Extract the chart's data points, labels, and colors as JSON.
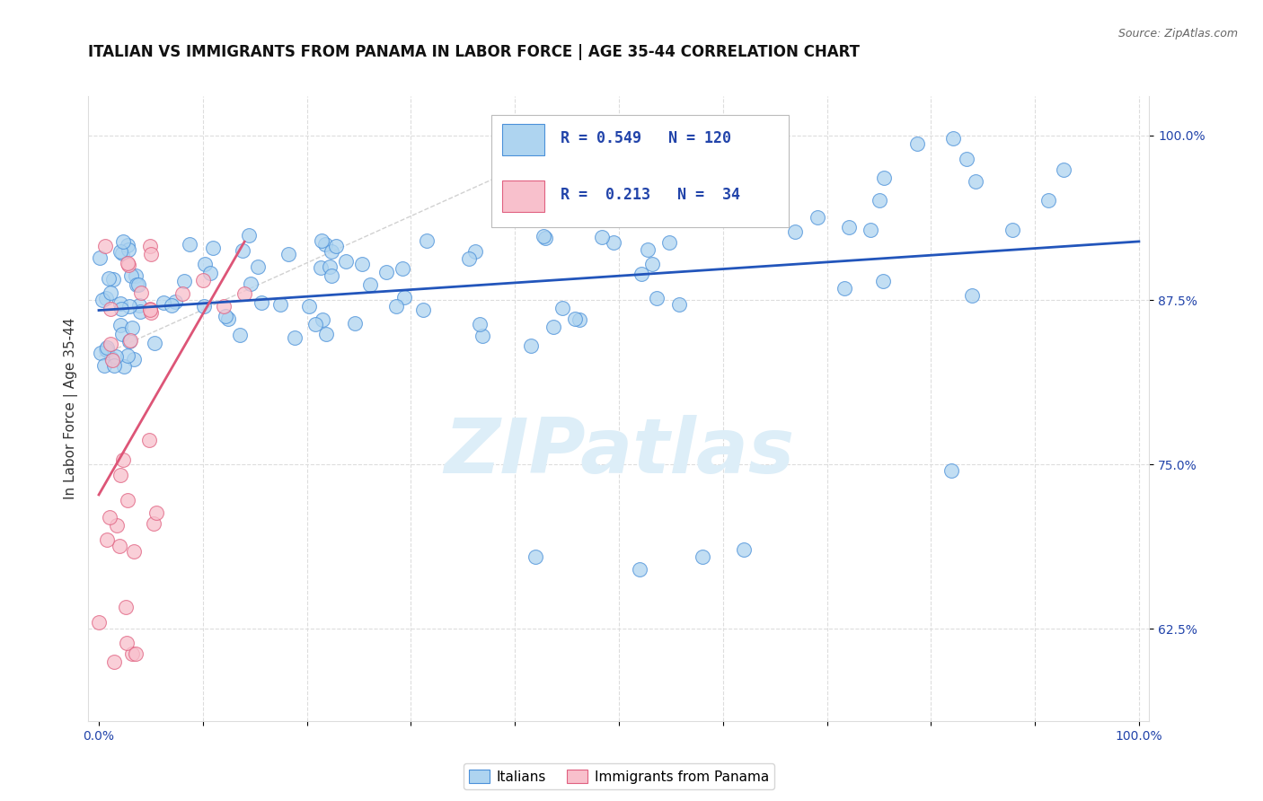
{
  "title": "ITALIAN VS IMMIGRANTS FROM PANAMA IN LABOR FORCE | AGE 35-44 CORRELATION CHART",
  "source": "Source: ZipAtlas.com",
  "ylabel": "In Labor Force | Age 35-44",
  "x_tick_labels": [
    "0.0%",
    "",
    "",
    "",
    "",
    "",
    "",
    "",
    "",
    "",
    "100.0%"
  ],
  "y_tick_labels_right": [
    "62.5%",
    "75.0%",
    "87.5%",
    "100.0%"
  ],
  "y_ticks_right": [
    0.625,
    0.75,
    0.875,
    1.0
  ],
  "legend_labels": [
    "Italians",
    "Immigrants from Panama"
  ],
  "legend_R_italian": "0.549",
  "legend_N_italian": "120",
  "legend_R_panama": "0.213",
  "legend_N_panama": "34",
  "color_italian_fill": "#AED4F0",
  "color_italian_edge": "#4A90D9",
  "color_panama_fill": "#F8C0CC",
  "color_panama_edge": "#E06080",
  "color_italian_line": "#2255BB",
  "color_panama_line": "#DD5577",
  "color_diagonal": "#CCCCCC",
  "watermark_color": "#DDEEF8",
  "title_fontsize": 12,
  "axis_label_fontsize": 11,
  "tick_fontsize": 10,
  "legend_fontsize": 11
}
